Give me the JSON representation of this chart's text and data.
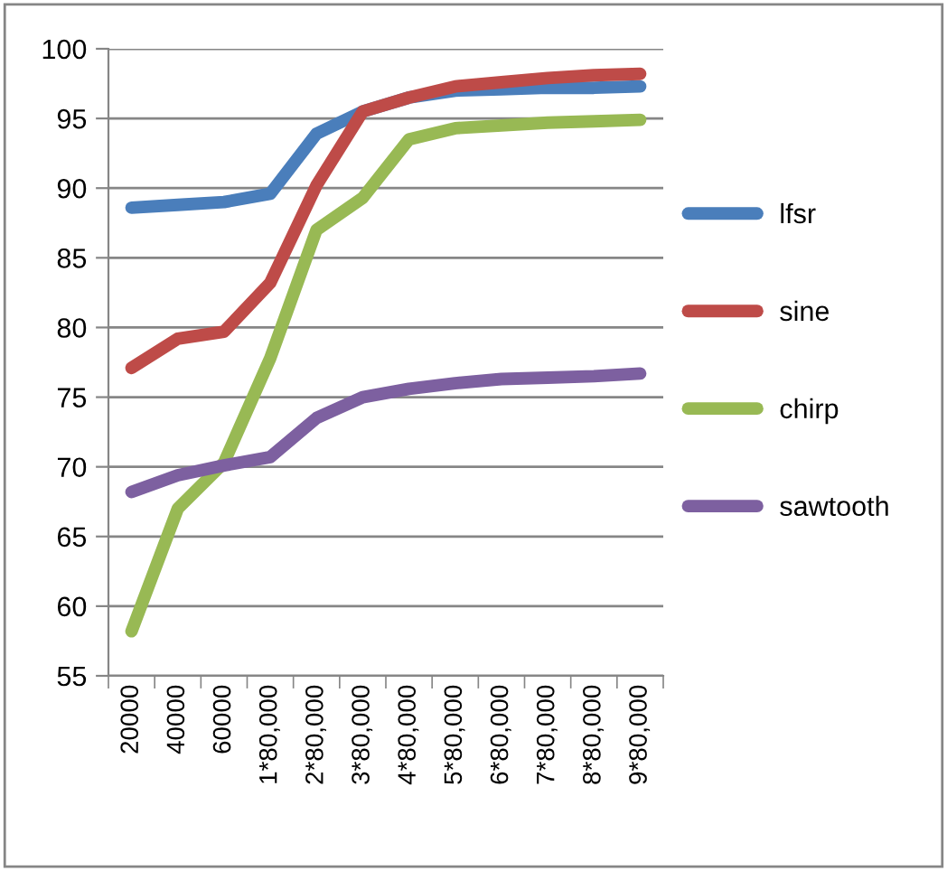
{
  "chart_data": {
    "type": "line",
    "categories": [
      "20000",
      "40000",
      "60000",
      "1*80,000",
      "2*80,000",
      "3*80,000",
      "4*80,000",
      "5*80,000",
      "6*80,000",
      "7*80,000",
      "8*80,000",
      "9*80,000"
    ],
    "series": [
      {
        "name": "lfsr",
        "color": "#4a7ebb",
        "values": [
          88.6,
          88.8,
          89.0,
          89.6,
          93.9,
          95.5,
          96.5,
          97.0,
          97.1,
          97.2,
          97.2,
          97.3
        ]
      },
      {
        "name": "sine",
        "color": "#be4b48",
        "values": [
          77.1,
          79.2,
          79.7,
          83.2,
          90.2,
          95.5,
          96.5,
          97.3,
          97.6,
          97.9,
          98.1,
          98.2
        ]
      },
      {
        "name": "chirp",
        "color": "#98b954",
        "values": [
          58.2,
          67.0,
          70.3,
          77.8,
          87.0,
          89.3,
          93.5,
          94.3,
          94.5,
          94.7,
          94.8,
          94.9
        ]
      },
      {
        "name": "sawtooth",
        "color": "#7d60a0",
        "values": [
          68.2,
          69.4,
          70.1,
          70.7,
          73.5,
          75.0,
          75.6,
          76.0,
          76.3,
          76.4,
          76.5,
          76.7
        ]
      }
    ],
    "ylim": [
      55,
      100
    ],
    "yticks": [
      55,
      60,
      65,
      70,
      75,
      80,
      85,
      90,
      95,
      100
    ],
    "grid": "y",
    "legend": "right",
    "marker": "none",
    "line_style": "solid"
  }
}
